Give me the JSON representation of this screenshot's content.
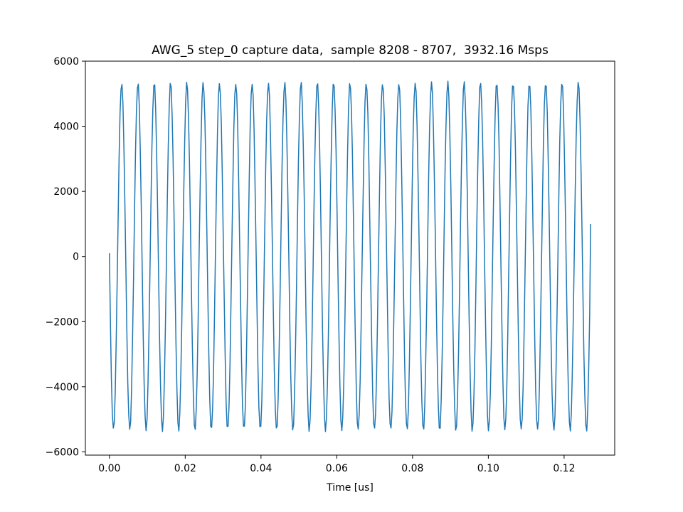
{
  "chart_data": {
    "type": "line",
    "title": "AWG_5 step_0 capture data,  sample 8208 - 8707,  3932.16 Msps",
    "xlabel": "Time [us]",
    "ylabel": "",
    "xlim": [
      -0.00635,
      0.13335
    ],
    "ylim": [
      -6100,
      6000
    ],
    "xticks": [
      0.0,
      0.02,
      0.04,
      0.06,
      0.08,
      0.1,
      0.12
    ],
    "xtick_labels": [
      "0.00",
      "0.02",
      "0.04",
      "0.06",
      "0.08",
      "0.10",
      "0.12"
    ],
    "yticks": [
      -6000,
      -4000,
      -2000,
      0,
      2000,
      4000,
      6000
    ],
    "ytick_labels": [
      "−6000",
      "−4000",
      "−2000",
      "0",
      "2000",
      "4000",
      "6000"
    ],
    "grid": false,
    "series_color": "#1f77b4",
    "x_start": 0.0,
    "x_end": 0.127,
    "sample_count": 500,
    "signal": {
      "amplitude": 5400,
      "frequency_mhz": 232.3,
      "start_value": 100,
      "end_value": 1000
    }
  }
}
